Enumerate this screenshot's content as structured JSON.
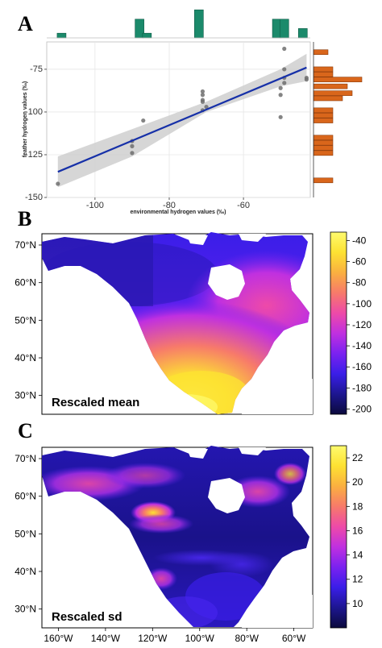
{
  "panel_letters": {
    "a": "A",
    "b": "B",
    "c": "C"
  },
  "chart_data": [
    {
      "type": "scatter",
      "xlabel": "environmental hydrogen values (‰)",
      "ylabel": "feather hydrogen values (‰)",
      "xlim": [
        -113,
        -42
      ],
      "ylim": [
        -150,
        -59
      ],
      "x_ticks": [
        "-100",
        "-80",
        "-60"
      ],
      "x_tick_values": [
        -100,
        -80,
        -60
      ],
      "y_ticks": [
        "-75",
        "-100",
        "-125",
        "-150"
      ],
      "y_tick_values": [
        -75,
        -100,
        -125,
        -150
      ],
      "grid": true,
      "points": [
        {
          "x": -110,
          "y": -142
        },
        {
          "x": -87,
          "y": -105
        },
        {
          "x": -90,
          "y": -117
        },
        {
          "x": -90,
          "y": -120
        },
        {
          "x": -90,
          "y": -124
        },
        {
          "x": -71,
          "y": -88
        },
        {
          "x": -71,
          "y": -90
        },
        {
          "x": -71,
          "y": -93
        },
        {
          "x": -71,
          "y": -94
        },
        {
          "x": -70,
          "y": -97
        },
        {
          "x": -71,
          "y": -99
        },
        {
          "x": -49,
          "y": -63
        },
        {
          "x": -49,
          "y": -75
        },
        {
          "x": -49,
          "y": -80
        },
        {
          "x": -49,
          "y": -83
        },
        {
          "x": -50,
          "y": -86
        },
        {
          "x": -50,
          "y": -90
        },
        {
          "x": -50,
          "y": -103
        },
        {
          "x": -43,
          "y": -80
        },
        {
          "x": -43,
          "y": -81
        }
      ],
      "fit_line": {
        "x": [
          -110,
          -43
        ],
        "y": [
          -135,
          -74
        ],
        "color": "#1630a8"
      },
      "confidence_band": {
        "x": [
          -110,
          -90,
          -70,
          -50,
          -43
        ],
        "upper": [
          -126,
          -110,
          -94,
          -75,
          -66
        ],
        "lower": [
          -144,
          -126,
          -100,
          -85,
          -82
        ],
        "color": "#cfcfcf"
      },
      "top_histogram": {
        "color": "#1b8a6b",
        "x": [
          -109,
          -88,
          -86,
          -80,
          -72,
          -71,
          -51,
          -49,
          -44
        ],
        "height": [
          1,
          4,
          1,
          0,
          6,
          0,
          4,
          4,
          2
        ]
      },
      "right_histogram": {
        "color": "#d9661b",
        "y": [
          -65,
          -75,
          -78,
          -81,
          -85,
          -89,
          -92,
          -99,
          -102,
          -105,
          -115,
          -118,
          -121,
          -124,
          -140
        ],
        "width": [
          3,
          4,
          4,
          10,
          7,
          8,
          6,
          4,
          4,
          4,
          4,
          4,
          4,
          4,
          4
        ]
      }
    },
    {
      "type": "heatmap",
      "title": "Rescaled mean",
      "x_ticks": [],
      "y_ticks": [
        "70°N",
        "60°N",
        "50°N",
        "40°N",
        "30°N"
      ],
      "y_tick_values": [
        70,
        60,
        50,
        40,
        30
      ],
      "colorbar": {
        "ticks": [
          "-40",
          "-60",
          "-80",
          "-100",
          "-120",
          "-140",
          "-160",
          "-180",
          "-200"
        ],
        "tick_values": [
          -40,
          -60,
          -80,
          -100,
          -120,
          -140,
          -160,
          -180,
          -200
        ],
        "range": [
          -205,
          -32
        ]
      }
    },
    {
      "type": "heatmap",
      "title": "Rescaled sd",
      "x_ticks": [
        "160°W",
        "140°W",
        "120°W",
        "100°W",
        "80°W",
        "60°W"
      ],
      "x_tick_values": [
        -160,
        -140,
        -120,
        -100,
        -80,
        -60
      ],
      "y_ticks": [
        "70°N",
        "60°N",
        "50°N",
        "40°N",
        "30°N"
      ],
      "y_tick_values": [
        70,
        60,
        50,
        40,
        30
      ],
      "colorbar": {
        "ticks": [
          "22",
          "20",
          "18",
          "16",
          "14",
          "12",
          "10"
        ],
        "tick_values": [
          22,
          20,
          18,
          16,
          14,
          12,
          10
        ],
        "range": [
          8,
          23
        ]
      }
    }
  ],
  "palette": {
    "colorbar_stops": [
      "#0b0a3c",
      "#1d1690",
      "#3a1ee8",
      "#7a22f0",
      "#c030e0",
      "#ee4aa8",
      "#f77a6a",
      "#fab040",
      "#fde232",
      "#fefb6e"
    ],
    "fit_line": "#1630a8",
    "top_bars": "#1b8a6b",
    "right_bars": "#d9661b"
  }
}
